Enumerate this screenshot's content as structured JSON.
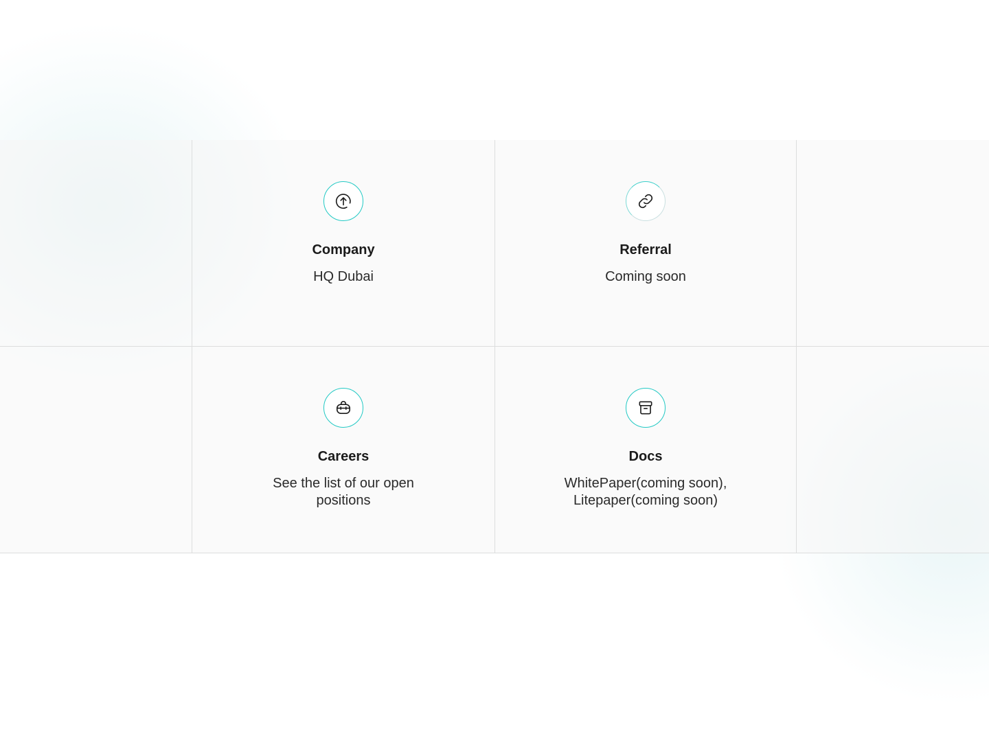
{
  "accent_color": "#22c9c4",
  "line_color": "#dcdddd",
  "cards": {
    "company": {
      "icon": "arrow-up-circle-icon",
      "title": "Company",
      "description": "HQ Dubai"
    },
    "referral": {
      "icon": "link-icon",
      "title": "Referral",
      "description": "Coming soon"
    },
    "careers": {
      "icon": "briefcase-icon",
      "title": "Careers",
      "description": "See the list of our open positions"
    },
    "docs": {
      "icon": "archive-box-icon",
      "title": "Docs",
      "description": "WhitePaper(coming soon), Litepaper(coming soon)"
    }
  }
}
